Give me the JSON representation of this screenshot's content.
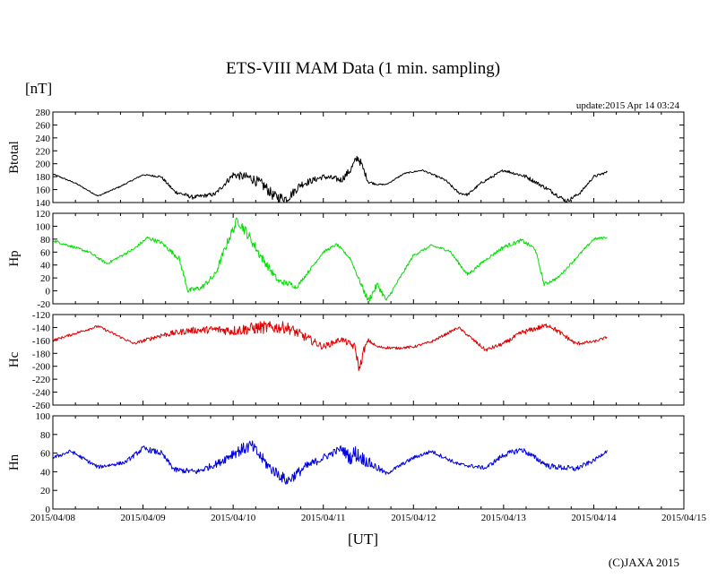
{
  "header": {
    "title": "ETS-VIII MAM Data (1 min. sampling)",
    "unit": "[nT]",
    "update": "update:2015 Apr 14 03:24"
  },
  "footer": {
    "xunit": "[UT]",
    "credit": "(C)JAXA 2015"
  },
  "chart_data": [
    {
      "type": "line",
      "name": "Btotal",
      "ylabel": "Btotal",
      "color": "#000000",
      "ylim": [
        140,
        280
      ],
      "yticks": [
        140,
        160,
        180,
        200,
        220,
        240,
        260,
        280
      ],
      "x": [
        0,
        0.25,
        0.5,
        0.75,
        1.0,
        1.2,
        1.35,
        1.55,
        1.8,
        2.0,
        2.2,
        2.35,
        2.45,
        2.6,
        2.75,
        3.0,
        3.2,
        3.3,
        3.38,
        3.42,
        3.5,
        3.6,
        3.7,
        3.9,
        4.1,
        4.35,
        4.5,
        4.6,
        4.75,
        5.0,
        5.25,
        5.5,
        5.7,
        5.85,
        6.0,
        6.15
      ],
      "y": [
        184,
        170,
        150,
        165,
        183,
        180,
        157,
        148,
        153,
        183,
        178,
        165,
        150,
        146,
        168,
        180,
        175,
        190,
        210,
        200,
        172,
        168,
        168,
        185,
        190,
        175,
        155,
        152,
        170,
        190,
        180,
        160,
        142,
        155,
        180,
        187
      ],
      "noise": [
        1,
        1,
        1,
        1,
        1,
        2,
        3,
        3,
        3,
        5,
        8,
        9,
        8,
        7,
        6,
        4,
        5,
        6,
        7,
        6,
        3,
        1,
        1,
        1,
        1,
        2,
        2,
        2,
        2,
        2,
        3,
        3,
        3,
        2,
        2,
        2
      ]
    },
    {
      "type": "line",
      "name": "Hp",
      "ylabel": "Hp",
      "color": "#00e000",
      "ylim": [
        -20,
        120
      ],
      "yticks": [
        -20,
        0,
        20,
        40,
        60,
        80,
        100,
        120
      ],
      "x": [
        0,
        0.4,
        0.6,
        0.9,
        1.05,
        1.2,
        1.4,
        1.5,
        1.65,
        1.8,
        1.95,
        2.05,
        2.15,
        2.3,
        2.5,
        2.65,
        2.7,
        3.0,
        3.15,
        3.3,
        3.45,
        3.5,
        3.6,
        3.7,
        4.0,
        4.2,
        4.4,
        4.6,
        4.8,
        5.0,
        5.2,
        5.35,
        5.45,
        5.6,
        5.8,
        6.0,
        6.15
      ],
      "y": [
        78,
        60,
        42,
        65,
        82,
        75,
        50,
        0,
        5,
        25,
        80,
        110,
        90,
        55,
        15,
        10,
        5,
        60,
        72,
        50,
        0,
        -15,
        10,
        -15,
        55,
        70,
        62,
        25,
        48,
        68,
        78,
        65,
        10,
        20,
        50,
        80,
        83
      ],
      "noise": [
        2,
        2,
        2,
        2,
        3,
        3,
        4,
        4,
        4,
        5,
        7,
        8,
        8,
        7,
        5,
        4,
        3,
        2,
        2,
        2,
        5,
        5,
        5,
        3,
        2,
        2,
        2,
        3,
        2,
        3,
        3,
        3,
        3,
        2,
        2,
        2,
        2
      ]
    },
    {
      "type": "line",
      "name": "Hc",
      "ylabel": "Hc",
      "color": "#e00000",
      "ylim": [
        -260,
        -120
      ],
      "yticks": [
        -260,
        -240,
        -220,
        -200,
        -180,
        -160,
        -140,
        -120
      ],
      "x": [
        0,
        0.5,
        0.9,
        1.2,
        1.5,
        1.8,
        2.0,
        2.3,
        2.6,
        2.8,
        3.0,
        3.2,
        3.35,
        3.4,
        3.45,
        3.5,
        3.6,
        3.8,
        4.0,
        4.2,
        4.5,
        4.8,
        5.0,
        5.2,
        5.5,
        5.8,
        6.0,
        6.15
      ],
      "y": [
        -160,
        -138,
        -165,
        -152,
        -145,
        -143,
        -145,
        -140,
        -140,
        -155,
        -170,
        -158,
        -170,
        -205,
        -175,
        -160,
        -170,
        -172,
        -170,
        -162,
        -140,
        -175,
        -165,
        -148,
        -136,
        -165,
        -162,
        -155
      ],
      "noise": [
        2,
        2,
        2,
        4,
        5,
        6,
        8,
        10,
        9,
        7,
        5,
        4,
        6,
        8,
        6,
        3,
        2,
        2,
        2,
        2,
        2,
        3,
        3,
        4,
        4,
        3,
        2,
        2
      ]
    },
    {
      "type": "line",
      "name": "Hn",
      "ylabel": "Hn",
      "color": "#0000e0",
      "ylim": [
        0,
        100
      ],
      "yticks": [
        0,
        20,
        40,
        60,
        80,
        100
      ],
      "x": [
        0,
        0.2,
        0.5,
        0.8,
        1.0,
        1.2,
        1.35,
        1.6,
        1.85,
        2.0,
        2.2,
        2.4,
        2.6,
        2.8,
        3.0,
        3.2,
        3.3,
        3.35,
        3.5,
        3.7,
        4.0,
        4.2,
        4.5,
        4.8,
        5.0,
        5.2,
        5.5,
        5.8,
        6.0,
        6.15
      ],
      "y": [
        55,
        62,
        45,
        50,
        65,
        60,
        42,
        40,
        50,
        60,
        68,
        45,
        30,
        45,
        55,
        65,
        55,
        60,
        50,
        38,
        55,
        62,
        48,
        44,
        58,
        64,
        46,
        43,
        52,
        63
      ],
      "noise": [
        2,
        2,
        2,
        2,
        3,
        3,
        3,
        3,
        4,
        6,
        7,
        6,
        6,
        5,
        4,
        4,
        8,
        9,
        6,
        2,
        2,
        2,
        2,
        2,
        3,
        3,
        3,
        3,
        2,
        2
      ]
    }
  ],
  "x_axis": {
    "range": [
      0,
      7
    ],
    "tick_labels": [
      "2015/04/08",
      "2015/04/09",
      "2015/04/10",
      "2015/04/11",
      "2015/04/12",
      "2015/04/13",
      "2015/04/14",
      "2015/04/15"
    ]
  }
}
